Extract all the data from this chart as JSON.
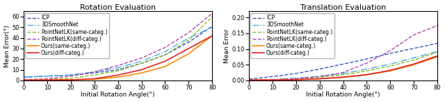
{
  "rot_title": "Rotation Evaluation",
  "trans_title": "Translation Evaluation",
  "xlabel": "Initial Rotation Angle(°)",
  "rot_ylabel": "Mean Error(°)",
  "trans_ylabel": "Mean Error",
  "x": [
    0,
    10,
    20,
    30,
    40,
    50,
    60,
    70,
    80
  ],
  "rot_ICP": [
    3,
    4,
    5,
    7,
    10,
    16,
    24,
    36,
    51
  ],
  "rot_3DS": [
    3,
    4,
    5,
    8,
    12,
    18,
    27,
    40,
    50
  ],
  "rot_PNL_same": [
    0.3,
    0.8,
    2,
    5,
    9,
    16,
    24,
    38,
    60
  ],
  "rot_PNL_diff": [
    0.5,
    1.5,
    4,
    8,
    14,
    21,
    31,
    45,
    63
  ],
  "rot_Ours_same": [
    0.2,
    0.3,
    0.5,
    1,
    3,
    7,
    13,
    25,
    42
  ],
  "rot_Ours_diff": [
    0.2,
    0.3,
    0.5,
    1.5,
    5,
    10,
    18,
    30,
    42
  ],
  "trans_ICP": [
    0.004,
    0.012,
    0.022,
    0.036,
    0.052,
    0.068,
    0.086,
    0.102,
    0.118
  ],
  "trans_3DS": [
    0.001,
    0.003,
    0.007,
    0.013,
    0.022,
    0.036,
    0.052,
    0.072,
    0.092
  ],
  "trans_PNL_same": [
    0.001,
    0.002,
    0.005,
    0.01,
    0.018,
    0.03,
    0.046,
    0.065,
    0.09
  ],
  "trans_PNL_diff": [
    0.001,
    0.002,
    0.005,
    0.012,
    0.025,
    0.055,
    0.095,
    0.145,
    0.175
  ],
  "trans_Ours_same": [
    0.001,
    0.001,
    0.002,
    0.005,
    0.01,
    0.018,
    0.03,
    0.05,
    0.075
  ],
  "trans_Ours_diff": [
    0.001,
    0.001,
    0.002,
    0.005,
    0.01,
    0.018,
    0.032,
    0.052,
    0.078
  ],
  "rot_ylim": [
    0,
    65
  ],
  "rot_yticks": [
    0,
    10,
    20,
    30,
    40,
    50,
    60
  ],
  "trans_ylim": [
    0,
    0.22
  ],
  "trans_yticks": [
    0,
    0.05,
    0.1,
    0.15,
    0.2
  ],
  "xticks": [
    0,
    10,
    20,
    30,
    40,
    50,
    60,
    70,
    80
  ],
  "legend_labels": [
    "ICP",
    "3DSmoothNet",
    "PointNetLK(same-categ.)",
    "PointNetLK(diff-categ.)",
    "Ours(same-categ.)",
    "Ours(diff-categ.)"
  ],
  "colors": [
    "#3355bb",
    "#44aadd",
    "#88bb22",
    "#aa44aa",
    "#ff8800",
    "#dd2222"
  ],
  "linestyles": [
    "--",
    "-.",
    "--",
    "--",
    "-",
    "-"
  ],
  "dashes": [
    [
      4,
      2
    ],
    [
      4,
      2,
      1,
      2
    ],
    [
      3,
      2
    ],
    [
      3,
      2
    ],
    [],
    []
  ],
  "linewidths": [
    1.0,
    1.0,
    1.0,
    1.0,
    1.2,
    1.2
  ],
  "title_fontsize": 8,
  "label_fontsize": 6.5,
  "legend_fontsize": 5.5,
  "tick_fontsize": 6
}
